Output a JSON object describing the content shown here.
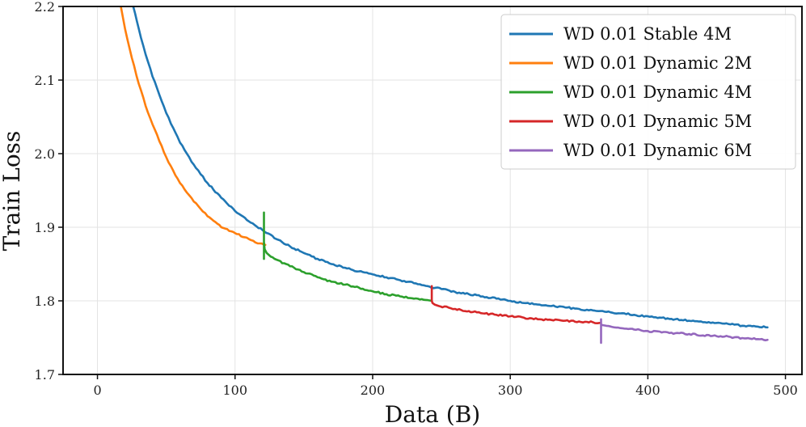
{
  "chart_data": {
    "type": "line",
    "title": "",
    "xlabel": "Data (B)",
    "ylabel": "Train Loss",
    "xlim": [
      -25,
      512
    ],
    "ylim": [
      1.7,
      2.2
    ],
    "xticks": [
      0,
      100,
      200,
      300,
      400,
      500
    ],
    "yticks": [
      1.7,
      1.8,
      1.9,
      2.0,
      2.1,
      2.2
    ],
    "xtick_labels": [
      "0",
      "100",
      "200",
      "300",
      "400",
      "500"
    ],
    "ytick_labels": [
      "1.7",
      "1.8",
      "1.9",
      "2.0",
      "2.1",
      "2.2"
    ],
    "grid": true,
    "legend_position": "top-right",
    "series": [
      {
        "name": "WD 0.01 Stable 4M",
        "color": "#1f77b4",
        "x": [
          26,
          30,
          35,
          40,
          45,
          50,
          55,
          60,
          65,
          70,
          75,
          80,
          90,
          100,
          110,
          120,
          130,
          140,
          150,
          160,
          170,
          180,
          190,
          200,
          210,
          220,
          230,
          240,
          250,
          260,
          270,
          280,
          290,
          300,
          310,
          320,
          330,
          340,
          350,
          360,
          370,
          380,
          390,
          400,
          410,
          420,
          430,
          440,
          450,
          460,
          470,
          480,
          487
        ],
        "y": [
          2.2,
          2.17,
          2.135,
          2.105,
          2.08,
          2.055,
          2.035,
          2.015,
          2.0,
          1.985,
          1.972,
          1.96,
          1.94,
          1.922,
          1.908,
          1.896,
          1.884,
          1.874,
          1.865,
          1.857,
          1.85,
          1.845,
          1.84,
          1.836,
          1.832,
          1.828,
          1.824,
          1.82,
          1.816,
          1.812,
          1.809,
          1.806,
          1.803,
          1.8,
          1.797,
          1.795,
          1.793,
          1.791,
          1.789,
          1.787,
          1.785,
          1.783,
          1.781,
          1.779,
          1.777,
          1.775,
          1.773,
          1.771,
          1.77,
          1.768,
          1.766,
          1.765,
          1.764
        ]
      },
      {
        "name": "WD 0.01 Dynamic 2M",
        "color": "#ff7f0e",
        "x": [
          17,
          20,
          25,
          30,
          35,
          40,
          45,
          50,
          55,
          60,
          65,
          70,
          75,
          80,
          90,
          100,
          110,
          118,
          122
        ],
        "y": [
          2.2,
          2.17,
          2.13,
          2.095,
          2.065,
          2.04,
          2.017,
          1.995,
          1.977,
          1.96,
          1.947,
          1.935,
          1.925,
          1.915,
          1.9,
          1.892,
          1.884,
          1.878,
          1.876
        ]
      },
      {
        "name": "WD 0.01 Dynamic 4M",
        "color": "#2ca02c",
        "x": [
          121,
          121,
          121,
          121.5,
          123,
          126,
          130,
          140,
          150,
          160,
          170,
          180,
          190,
          200,
          210,
          220,
          230,
          240,
          243
        ],
        "y": [
          1.857,
          1.92,
          1.88,
          1.87,
          1.865,
          1.86,
          1.856,
          1.847,
          1.839,
          1.832,
          1.826,
          1.822,
          1.818,
          1.813,
          1.809,
          1.806,
          1.803,
          1.801,
          1.8
        ]
      },
      {
        "name": "WD 0.01 Dynamic 5M",
        "color": "#d62728",
        "x": [
          243,
          243,
          243.5,
          245,
          248,
          255,
          260,
          270,
          280,
          290,
          300,
          310,
          320,
          330,
          340,
          350,
          360,
          365
        ],
        "y": [
          1.82,
          1.8,
          1.797,
          1.795,
          1.793,
          1.791,
          1.789,
          1.786,
          1.783,
          1.781,
          1.779,
          1.777,
          1.775,
          1.774,
          1.773,
          1.772,
          1.771,
          1.77
        ]
      },
      {
        "name": "WD 0.01 Dynamic 6M",
        "color": "#9467bd",
        "x": [
          366,
          366,
          366,
          367,
          370,
          380,
          390,
          400,
          410,
          420,
          430,
          440,
          450,
          460,
          470,
          480,
          487
        ],
        "y": [
          1.743,
          1.775,
          1.768,
          1.767,
          1.766,
          1.763,
          1.761,
          1.759,
          1.757,
          1.756,
          1.755,
          1.753,
          1.752,
          1.751,
          1.749,
          1.748,
          1.747
        ]
      }
    ]
  }
}
